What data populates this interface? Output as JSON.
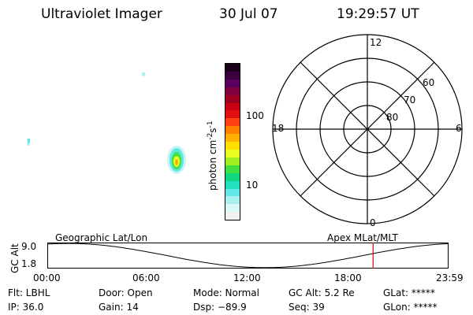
{
  "header": {
    "instrument": "Ultraviolet Imager",
    "date": "30 Jul 07",
    "time": "19:29:57 UT"
  },
  "colorbar": {
    "label": "photon cm",
    "label_sup1": "-2",
    "label_s": "s",
    "label_sup2": "-1",
    "ticks": [
      "100",
      "10"
    ],
    "colors": [
      "#1a0018",
      "#3a0040",
      "#5a0060",
      "#800040",
      "#a00020",
      "#c80010",
      "#e01010",
      "#ff4010",
      "#ff8000",
      "#ffb000",
      "#ffe000",
      "#e8ff20",
      "#a0f020",
      "#40e040",
      "#10d880",
      "#20e0c0",
      "#60e8e8",
      "#a8f0f0",
      "#d8f8f8",
      "#f0f0f0"
    ]
  },
  "polar": {
    "mlt_labels": {
      "top": "12",
      "left": "18",
      "right": "6",
      "bottom": "0"
    },
    "lat_labels": [
      "60",
      "70",
      "80"
    ]
  },
  "orbit": {
    "left_label": "Geographic Lat/Lon",
    "right_label": "Apex MLat/MLT",
    "y_axis_title": "GC Alt",
    "y_ticks": [
      "9.0",
      "1.8"
    ],
    "x_ticks": [
      "00:00",
      "06:00",
      "12:00",
      "18:00",
      "23:59"
    ],
    "marker_color": "#e00000",
    "marker_time_fraction": 0.8125
  },
  "info": {
    "row1": [
      "Flt: LBHL",
      "Door: Open",
      "Mode: Normal",
      "GC Alt: 5.2 Re",
      "GLat: *****"
    ],
    "row2": [
      "IP: 36.0",
      "Gain: 14",
      "Dsp:  −89.9",
      "Seq: 39",
      "GLon: *****"
    ]
  }
}
